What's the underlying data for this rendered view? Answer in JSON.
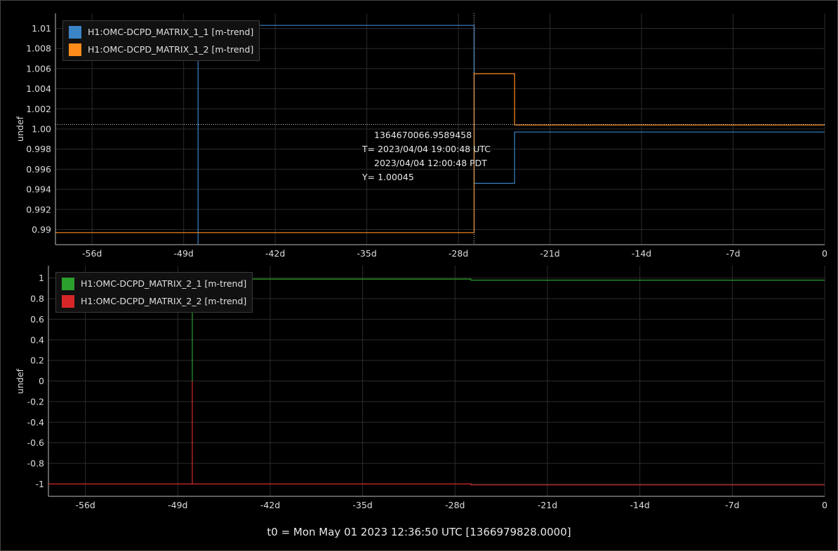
{
  "footer": "t0 = Mon May 01 2023 12:36:50 UTC [1366979828.0000]",
  "readout": {
    "gps": "1364670066.9589458",
    "t_utc": "T= 2023/04/04 19:00:48 UTC",
    "t_pdt": "2023/04/04 12:00:48 PDT",
    "y": "Y= 1.00045"
  },
  "colors": {
    "c11": "#3a84c8",
    "c12": "#ff8c1a",
    "c21": "#2ca02c",
    "c22": "#d62728"
  },
  "chart_data": [
    {
      "type": "line",
      "ylabel": "undef",
      "xlim": [
        -58.8,
        0
      ],
      "ylim": [
        0.9885,
        1.0115
      ],
      "x_ticks": [
        -56,
        -49,
        -42,
        -35,
        -28,
        -21,
        -14,
        -7,
        0
      ],
      "x_tick_labels": [
        "-56d",
        "-49d",
        "-42d",
        "-35d",
        "-28d",
        "-21d",
        "-14d",
        "-7d",
        "0"
      ],
      "y_ticks": [
        0.99,
        0.992,
        0.994,
        0.996,
        0.998,
        1.0,
        1.002,
        1.004,
        1.006,
        1.008,
        1.01
      ],
      "y_tick_labels": [
        "0.99",
        "0.992",
        "0.994",
        "0.996",
        "0.998",
        "1.00",
        "1.002",
        "1.004",
        "1.006",
        "1.008",
        "1.01"
      ],
      "crosshair": {
        "x": -26.8,
        "y": 1.00045
      },
      "series": [
        {
          "name": "H1:OMC-DCPD_MATRIX_1_1 [m-trend]",
          "color": "#3a84c8",
          "x": [
            -47.9,
            -47.9,
            -26.8,
            -26.8,
            -23.7,
            -23.7,
            0
          ],
          "y": [
            0.9885,
            1.0103,
            1.0103,
            0.9946,
            0.9946,
            0.9997,
            0.9997
          ]
        },
        {
          "name": "H1:OMC-DCPD_MATRIX_1_2 [m-trend]",
          "color": "#ff8c1a",
          "x": [
            -58.8,
            -47.9,
            -47.9,
            -26.8,
            -26.8,
            -23.7,
            -23.7,
            0
          ],
          "y": [
            0.9897,
            0.9897,
            0.9897,
            0.9897,
            1.0055,
            1.0055,
            1.0004,
            1.0004
          ]
        }
      ]
    },
    {
      "type": "line",
      "ylabel": "undef",
      "xlim": [
        -58.8,
        0
      ],
      "ylim": [
        -1.12,
        1.12
      ],
      "x_ticks": [
        -56,
        -49,
        -42,
        -35,
        -28,
        -21,
        -14,
        -7,
        0
      ],
      "x_tick_labels": [
        "-56d",
        "-49d",
        "-42d",
        "-35d",
        "-28d",
        "-21d",
        "-14d",
        "-7d",
        "0"
      ],
      "y_ticks": [
        -1,
        -0.8,
        -0.6,
        -0.4,
        -0.2,
        0,
        0.2,
        0.4,
        0.6,
        0.8,
        1
      ],
      "y_tick_labels": [
        "-1",
        "-0.8",
        "-0.6",
        "-0.4",
        "-0.2",
        "0",
        "0.2",
        "0.4",
        "0.6",
        "0.8",
        "1"
      ],
      "series": [
        {
          "name": "H1:OMC-DCPD_MATRIX_2_1 [m-trend]",
          "color": "#2ca02c",
          "x": [
            -47.9,
            -47.9,
            -26.8,
            -26.8,
            0
          ],
          "y": [
            0,
            0.99,
            0.99,
            0.98,
            0.98
          ]
        },
        {
          "name": "H1:OMC-DCPD_MATRIX_2_2 [m-trend]",
          "color": "#d62728",
          "x": [
            -58.8,
            -47.9,
            -47.9,
            -47.9,
            -26.8,
            -26.8,
            0
          ],
          "y": [
            -1.0,
            -1.0,
            0.0,
            -1.0,
            -1.0,
            -1.01,
            -1.01
          ]
        }
      ]
    }
  ]
}
